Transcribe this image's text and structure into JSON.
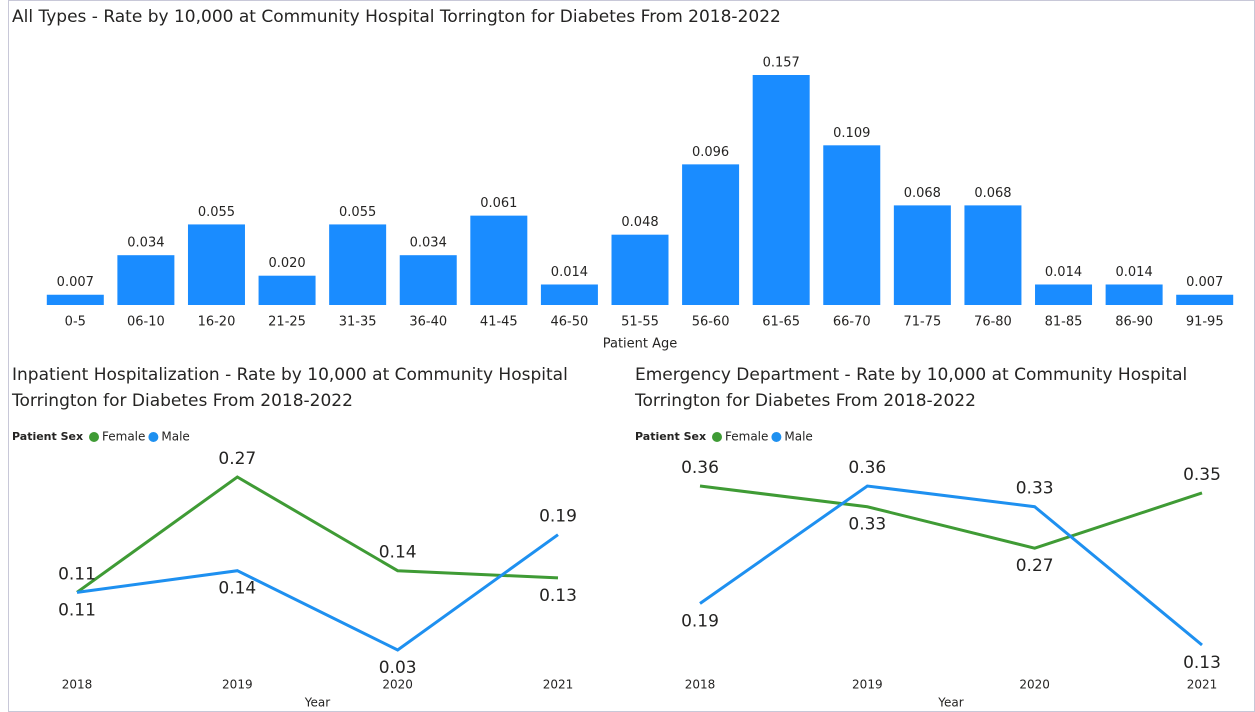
{
  "chart_data": [
    {
      "type": "bar",
      "title": "All Types - Rate by 10,000 at Community Hospital Torrington for Diabetes From 2018-2022",
      "x_label": "Patient Age",
      "color": "#1a8cff",
      "categories": [
        "0-5",
        "06-10",
        "16-20",
        "21-25",
        "31-35",
        "36-40",
        "41-45",
        "46-50",
        "51-55",
        "56-60",
        "61-65",
        "66-70",
        "71-75",
        "76-80",
        "81-85",
        "86-90",
        "91-95"
      ],
      "values": [
        0.007,
        0.034,
        0.055,
        0.02,
        0.055,
        0.034,
        0.061,
        0.014,
        0.048,
        0.096,
        0.157,
        0.109,
        0.068,
        0.068,
        0.014,
        0.014,
        0.007
      ],
      "value_labels": [
        "0.007",
        "0.034",
        "0.055",
        "0.020",
        "0.055",
        "0.034",
        "0.061",
        "0.014",
        "0.048",
        "0.096",
        "0.157",
        "0.109",
        "0.068",
        "0.068",
        "0.014",
        "0.014",
        "0.007"
      ]
    },
    {
      "type": "line",
      "title": "Inpatient Hospitalization - Rate by 10,000 at Community Hospital Torrington for Diabetes From 2018-2022",
      "legend_title": "Patient Sex",
      "x_label": "Year",
      "x": [
        2018,
        2019,
        2020,
        2021
      ],
      "series": [
        {
          "name": "Female",
          "color": "#3f9b35",
          "values": [
            0.11,
            0.27,
            0.14,
            0.13
          ]
        },
        {
          "name": "Male",
          "color": "#1e90f0",
          "values": [
            0.11,
            0.14,
            0.03,
            0.19
          ]
        }
      ]
    },
    {
      "type": "line",
      "title": "Emergency Department - Rate by 10,000 at Community Hospital Torrington for Diabetes From 2018-2022",
      "legend_title": "Patient Sex",
      "x_label": "Year",
      "x": [
        2018,
        2019,
        2020,
        2021
      ],
      "series": [
        {
          "name": "Female",
          "color": "#3f9b35",
          "values": [
            0.36,
            0.33,
            0.27,
            0.35
          ]
        },
        {
          "name": "Male",
          "color": "#1e90f0",
          "values": [
            0.19,
            0.36,
            0.33,
            0.13
          ]
        }
      ]
    }
  ]
}
